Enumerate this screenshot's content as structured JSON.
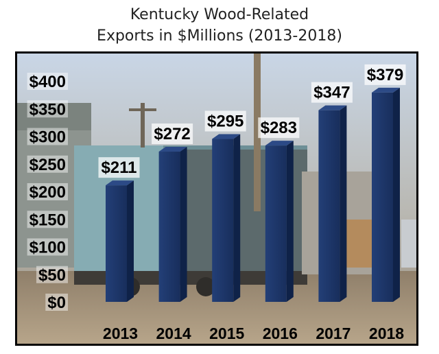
{
  "chart_data": {
    "type": "bar",
    "title_lines": [
      "Kentucky Wood-Related",
      "Exports in $Millions (2013-2018)"
    ],
    "categories": [
      "2013",
      "2014",
      "2015",
      "2016",
      "2017",
      "2018"
    ],
    "values": [
      211,
      272,
      295,
      283,
      347,
      379
    ],
    "data_labels": [
      "$211",
      "$272",
      "$295",
      "$283",
      "$347",
      "$379"
    ],
    "ylim": [
      0,
      400
    ],
    "yticks": [
      0,
      50,
      100,
      150,
      200,
      250,
      300,
      350,
      400
    ],
    "ytick_labels": [
      "$0",
      "$50",
      "$100",
      "$150",
      "$200",
      "$250",
      "$300",
      "$350",
      "$400"
    ],
    "xlabel": "",
    "ylabel": "",
    "grid": false,
    "legend": "none",
    "bar_color": "#1c3566"
  }
}
